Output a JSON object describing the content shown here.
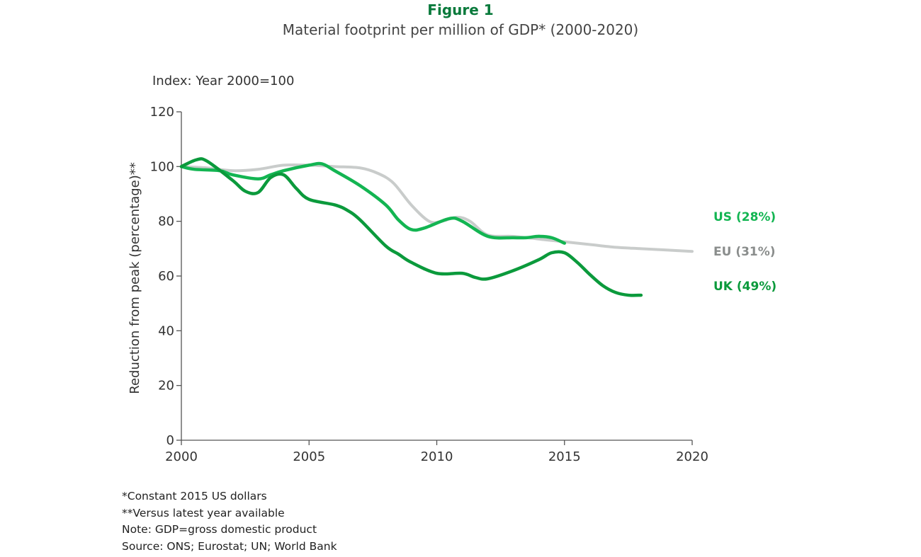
{
  "header": {
    "title": "Figure 1",
    "subtitle": "Material footprint per million of GDP* (2000-2020)",
    "index_note": "Index: Year 2000=100"
  },
  "footnotes": [
    "*Constant 2015 US dollars",
    "**Versus latest year available",
    "Note: GDP=gross domestic product",
    "Source: ONS; Eurostat; UN; World Bank"
  ],
  "chart_data": {
    "type": "line",
    "title": "Material footprint per million of GDP* (2000-2020)",
    "ylabel": "Reduction from peak (percentage)**",
    "xlabel": "",
    "xlim": [
      2000,
      2020
    ],
    "ylim": [
      0,
      120
    ],
    "xticks": [
      2000,
      2005,
      2010,
      2015,
      2020
    ],
    "yticks": [
      0,
      20,
      40,
      60,
      80,
      100,
      120
    ],
    "grid": false,
    "legend": "end-of-line labels, right",
    "series": [
      {
        "name": "EU",
        "label": "EU (31%)",
        "color": "#c9cccb",
        "label_color": "#8a8d8c",
        "x": [
          2000,
          2001,
          2002,
          2003,
          2004,
          2005,
          2006,
          2007,
          2007.7,
          2008.3,
          2009,
          2009.7,
          2010.2,
          2010.8,
          2011.3,
          2012,
          2013,
          2014,
          2015,
          2016,
          2017,
          2018,
          2019,
          2020
        ],
        "y": [
          100,
          99.5,
          98.5,
          99,
          100.5,
          100.5,
          100,
          99.5,
          97.5,
          94,
          86,
          80,
          80,
          81.5,
          80,
          75,
          74.5,
          73.5,
          72.5,
          71.5,
          70.5,
          70,
          69.5,
          69
        ]
      },
      {
        "name": "US",
        "label": "US (28%)",
        "color": "#13b552",
        "label_color": "#13b552",
        "x": [
          2000,
          2000.5,
          2001.5,
          2002,
          2003,
          2003.5,
          2004,
          2005,
          2005.5,
          2006,
          2007,
          2008,
          2008.5,
          2009,
          2009.5,
          2010.5,
          2011,
          2012,
          2013,
          2013.5,
          2014,
          2014.5,
          2015
        ],
        "y": [
          100,
          99,
          98.5,
          97,
          95.5,
          97,
          98.5,
          100.5,
          101,
          98.5,
          93,
          86,
          80.5,
          77,
          77.5,
          81,
          80,
          74.5,
          74,
          74,
          74.5,
          74,
          72
        ]
      },
      {
        "name": "UK",
        "label": "UK (49%)",
        "color": "#0b9a3c",
        "label_color": "#0b9a3c",
        "x": [
          2000,
          2000.6,
          2001,
          2002,
          2002.5,
          2003,
          2003.5,
          2004,
          2004.5,
          2005,
          2006,
          2006.5,
          2007,
          2008,
          2008.5,
          2009,
          2010,
          2011,
          2011.5,
          2012,
          2013,
          2014,
          2014.5,
          2015,
          2015.5,
          2016,
          2016.5,
          2017,
          2017.5,
          2018
        ],
        "y": [
          100,
          102.5,
          102,
          95,
          91,
          90.5,
          96,
          97,
          92,
          88,
          86,
          84,
          80.5,
          71,
          68,
          65,
          61,
          61,
          59.5,
          59,
          62,
          66,
          68.5,
          68.5,
          65,
          60.5,
          56.5,
          54,
          53,
          53
        ]
      }
    ]
  }
}
